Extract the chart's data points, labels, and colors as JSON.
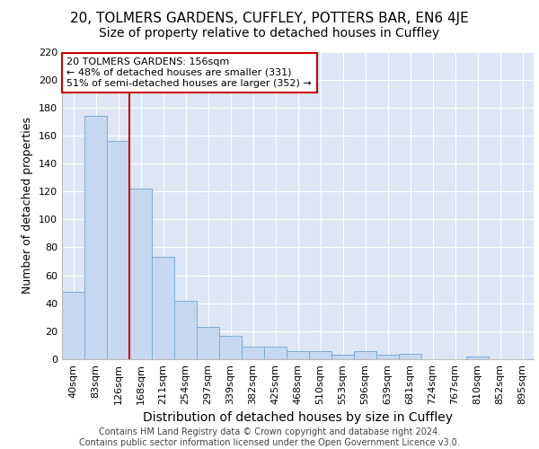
{
  "title_line1": "20, TOLMERS GARDENS, CUFFLEY, POTTERS BAR, EN6 4JE",
  "title_line2": "Size of property relative to detached houses in Cuffley",
  "xlabel": "Distribution of detached houses by size in Cuffley",
  "ylabel": "Number of detached properties",
  "footer_line1": "Contains HM Land Registry data © Crown copyright and database right 2024.",
  "footer_line2": "Contains public sector information licensed under the Open Government Licence v3.0.",
  "bar_labels": [
    "40sqm",
    "83sqm",
    "126sqm",
    "168sqm",
    "211sqm",
    "254sqm",
    "297sqm",
    "339sqm",
    "382sqm",
    "425sqm",
    "468sqm",
    "510sqm",
    "553sqm",
    "596sqm",
    "639sqm",
    "681sqm",
    "724sqm",
    "767sqm",
    "810sqm",
    "852sqm",
    "895sqm"
  ],
  "bar_values": [
    48,
    174,
    156,
    122,
    73,
    42,
    23,
    17,
    9,
    9,
    6,
    6,
    3,
    6,
    3,
    4,
    0,
    0,
    2,
    0,
    0
  ],
  "bar_color": "#c5d8f0",
  "bar_edge_color": "#7aadd4",
  "annotation_text": "20 TOLMERS GARDENS: 156sqm\n← 48% of detached houses are smaller (331)\n51% of semi-detached houses are larger (352) →",
  "annotation_box_color": "#ffffff",
  "annotation_box_edge": "#cc0000",
  "vline_x": 3.0,
  "vline_color": "#cc0000",
  "ylim": [
    0,
    220
  ],
  "yticks": [
    0,
    20,
    40,
    60,
    80,
    100,
    120,
    140,
    160,
    180,
    200,
    220
  ],
  "background_color": "#dce6f5",
  "grid_color": "#ffffff",
  "title_fontsize": 11,
  "subtitle_fontsize": 10,
  "xlabel_fontsize": 10,
  "ylabel_fontsize": 9,
  "tick_fontsize": 8,
  "annotation_fontsize": 8,
  "footer_fontsize": 7
}
